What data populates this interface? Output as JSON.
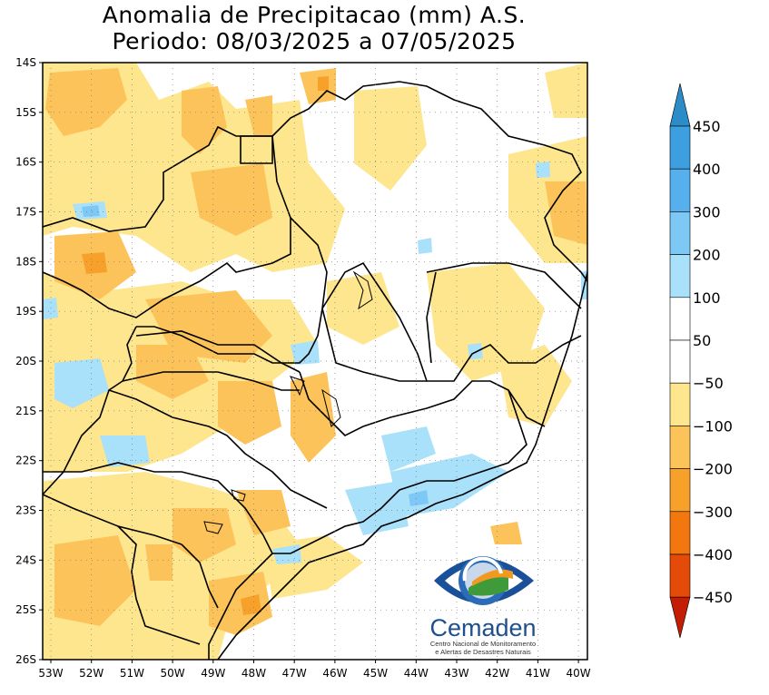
{
  "title": {
    "line1": "Anomalia de Precipitacao (mm) A.S.",
    "line2": "Periodo: 08/03/2025 a 07/05/2025"
  },
  "axes": {
    "lat_ticks": [
      "14S",
      "15S",
      "16S",
      "17S",
      "18S",
      "19S",
      "20S",
      "21S",
      "22S",
      "23S",
      "24S",
      "25S",
      "26S"
    ],
    "lon_ticks": [
      "53W",
      "52W",
      "51W",
      "50W",
      "49W",
      "48W",
      "47W",
      "46W",
      "45W",
      "44W",
      "43W",
      "42W",
      "41W",
      "40W"
    ]
  },
  "colorbar": {
    "labels": [
      "450",
      "400",
      "300",
      "200",
      "100",
      "50",
      "−50",
      "−100",
      "−200",
      "−300",
      "−400",
      "−450"
    ],
    "colors": {
      "c450": "#2b8cc8",
      "c400": "#3d9ee0",
      "c300": "#56b0ee",
      "c200": "#7ec8f6",
      "c100": "#a9e0fa",
      "c50": "#ffffff",
      "n50": "#fde68e",
      "n100": "#fbc35a",
      "n200": "#f7a12b",
      "n300": "#f2770f",
      "n400": "#e44a08",
      "n450": "#c41d06"
    }
  },
  "logo": {
    "name": "Cemaden",
    "subtitle1": "Centro Nacional de Monitoramento",
    "subtitle2": "e Alertas de Desastres Naturais"
  }
}
